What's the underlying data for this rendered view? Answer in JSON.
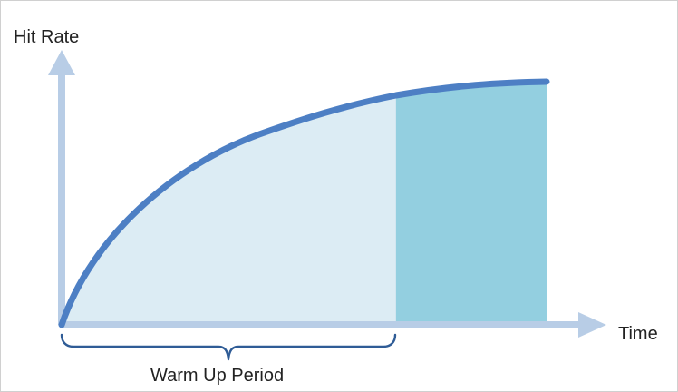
{
  "diagram": {
    "y_axis_label": "Hit Rate",
    "x_axis_label": "Time",
    "period_label": "Warm Up Period",
    "curve_shape": "increasing-concave",
    "warmup_fraction_of_curve": 0.69,
    "colors": {
      "curve": "#4d7fc4",
      "warmup_fill": "#dcecf4",
      "steady_fill": "#93cfe0",
      "axis": "#b8cde6",
      "brace": "#2f5c96",
      "text": "#222222"
    }
  }
}
